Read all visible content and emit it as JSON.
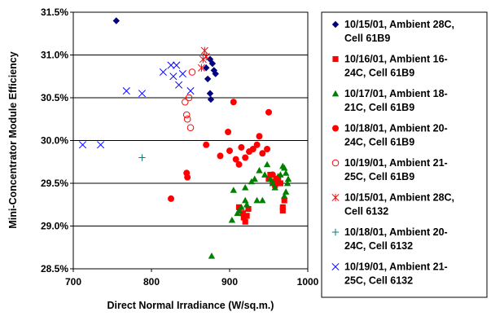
{
  "chart_data": {
    "type": "scatter",
    "xlabel": "Direct Normal Irradiance (W/sq.m.)",
    "ylabel": "Mini-Concentrator Module Efficiency",
    "xlim": [
      700,
      1000
    ],
    "ylim": [
      28.5,
      31.5
    ],
    "x_ticks": [
      700,
      800,
      900,
      1000
    ],
    "x_tick_labels": [
      "700",
      "800",
      "900",
      "1000"
    ],
    "y_ticks": [
      28.5,
      29.0,
      29.5,
      30.0,
      30.5,
      31.0,
      31.5
    ],
    "y_tick_labels": [
      "28.5%",
      "29.0%",
      "29.5%",
      "30.0%",
      "30.5%",
      "31.0%",
      "31.5%"
    ],
    "grid": "horizontal",
    "legend_placement": "right",
    "series": [
      {
        "name": "10/15/01, Ambient 28C, Cell 61B9",
        "legend_lines": [
          "10/15/01, Ambient 28C,",
          "Cell 61B9"
        ],
        "marker": "diamond",
        "color": "#000080",
        "points": [
          [
            755,
            31.4
          ],
          [
            870,
            30.85
          ],
          [
            875,
            30.95
          ],
          [
            878,
            30.9
          ],
          [
            880,
            30.82
          ],
          [
            882,
            30.78
          ],
          [
            872,
            30.72
          ],
          [
            875,
            30.55
          ],
          [
            876,
            30.48
          ]
        ]
      },
      {
        "name": "10/16/01, Ambient 16-24C, Cell 61B9",
        "legend_lines": [
          "10/16/01, Ambient 16-",
          "24C, Cell 61B9"
        ],
        "marker": "square",
        "color": "#ff0000",
        "points": [
          [
            912,
            29.22
          ],
          [
            917,
            29.15
          ],
          [
            918,
            29.1
          ],
          [
            920,
            29.05
          ],
          [
            922,
            29.12
          ],
          [
            924,
            29.2
          ],
          [
            950,
            29.55
          ],
          [
            952,
            29.6
          ],
          [
            955,
            29.52
          ],
          [
            958,
            29.48
          ],
          [
            962,
            29.55
          ],
          [
            965,
            29.5
          ],
          [
            968,
            29.22
          ],
          [
            968,
            29.18
          ],
          [
            970,
            29.3
          ]
        ]
      },
      {
        "name": "10/17/01, Ambient 18-21C, Cell 61B9",
        "legend_lines": [
          "10/17/01, Ambient 18-",
          "21C, Cell 61B9"
        ],
        "marker": "triangle",
        "color": "#008000",
        "points": [
          [
            877,
            28.65
          ],
          [
            903,
            29.07
          ],
          [
            905,
            29.42
          ],
          [
            910,
            29.15
          ],
          [
            912,
            29.18
          ],
          [
            915,
            29.22
          ],
          [
            920,
            29.3
          ],
          [
            920,
            29.45
          ],
          [
            922,
            29.25
          ],
          [
            928,
            29.52
          ],
          [
            932,
            29.55
          ],
          [
            935,
            29.3
          ],
          [
            938,
            29.65
          ],
          [
            942,
            29.3
          ],
          [
            945,
            29.6
          ],
          [
            948,
            29.72
          ],
          [
            952,
            29.55
          ],
          [
            955,
            29.5
          ],
          [
            958,
            29.45
          ],
          [
            960,
            29.55
          ],
          [
            962,
            29.58
          ],
          [
            965,
            29.6
          ],
          [
            968,
            29.7
          ],
          [
            970,
            29.68
          ],
          [
            972,
            29.62
          ],
          [
            972,
            29.4
          ],
          [
            974,
            29.5
          ],
          [
            975,
            29.55
          ],
          [
            970,
            29.35
          ]
        ]
      },
      {
        "name": "10/18/01, Ambient 20-24C, Cell 61B9",
        "legend_lines": [
          "10/18/01, Ambient 20-",
          "24C, Cell 61B9"
        ],
        "marker": "circle",
        "color": "#ff0000",
        "points": [
          [
            825,
            29.32
          ],
          [
            845,
            29.62
          ],
          [
            846,
            29.57
          ],
          [
            870,
            29.95
          ],
          [
            888,
            29.82
          ],
          [
            898,
            30.1
          ],
          [
            900,
            29.88
          ],
          [
            905,
            30.45
          ],
          [
            908,
            29.78
          ],
          [
            912,
            29.72
          ],
          [
            915,
            29.92
          ],
          [
            920,
            29.8
          ],
          [
            925,
            29.87
          ],
          [
            930,
            29.9
          ],
          [
            935,
            29.95
          ],
          [
            938,
            30.05
          ],
          [
            942,
            29.85
          ],
          [
            948,
            29.9
          ],
          [
            950,
            30.33
          ],
          [
            955,
            29.6
          ],
          [
            960,
            29.55
          ]
        ]
      },
      {
        "name": "10/19/01, Ambient 21-25C, Cell 61B9",
        "legend_lines": [
          "10/19/01, Ambient 21-",
          "25C, Cell 61B9"
        ],
        "marker": "open-circle",
        "color": "#ff0000",
        "points": [
          [
            843,
            30.45
          ],
          [
            845,
            30.3
          ],
          [
            846,
            30.25
          ],
          [
            848,
            30.5
          ],
          [
            850,
            30.15
          ],
          [
            852,
            30.8
          ]
        ]
      },
      {
        "name": "10/15/01, Ambient 28C, Cell 6132",
        "legend_lines": [
          "10/15/01, Ambient 28C,",
          "Cell 6132"
        ],
        "marker": "asterisk",
        "color": "#ff0000",
        "points": [
          [
            864,
            30.85
          ],
          [
            866,
            30.95
          ],
          [
            868,
            31.05
          ],
          [
            870,
            30.98
          ]
        ]
      },
      {
        "name": "10/18/01, Ambient 20-24C, Cell 6132",
        "legend_lines": [
          "10/18/01, Ambient 20-",
          "24C, Cell 6132"
        ],
        "marker": "plus",
        "color": "#008080",
        "points": [
          [
            788,
            29.8
          ]
        ]
      },
      {
        "name": "10/19/01, Ambient 21-25C, Cell 6132",
        "legend_lines": [
          "10/19/01, Ambient 21-",
          "25C, Cell 6132"
        ],
        "marker": "x",
        "color": "#0000ff",
        "points": [
          [
            712,
            29.95
          ],
          [
            735,
            29.95
          ],
          [
            768,
            30.58
          ],
          [
            788,
            30.55
          ],
          [
            815,
            30.8
          ],
          [
            825,
            30.88
          ],
          [
            828,
            30.75
          ],
          [
            832,
            30.88
          ],
          [
            835,
            30.65
          ],
          [
            840,
            30.78
          ],
          [
            850,
            30.58
          ]
        ]
      }
    ]
  }
}
